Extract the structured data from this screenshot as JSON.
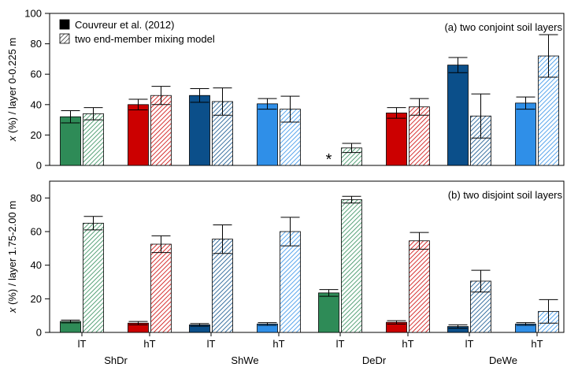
{
  "chart_data": {
    "type": "bar",
    "legend": {
      "placement": "top-left",
      "entries": [
        {
          "label": "Couvreur et al. (2012)",
          "style": "solid"
        },
        {
          "label": "two end-member mixing model",
          "style": "hatched"
        }
      ]
    },
    "groups": [
      "ShDr",
      "ShWe",
      "DeDr",
      "DeWe"
    ],
    "subgroups": [
      "lT",
      "hT"
    ],
    "colors": {
      "ShDr": {
        "lT": "#2e8b57",
        "hT": "#cc0000"
      },
      "ShWe": {
        "lT": "#0b4f8a",
        "hT": "#2f8fe8"
      },
      "DeDr": {
        "lT": "#2e8b57",
        "hT": "#cc0000"
      },
      "DeWe": {
        "lT": "#0b4f8a",
        "hT": "#2f8fe8"
      }
    },
    "panels": [
      {
        "id": "a",
        "label": "(a) two conjoint soil layers",
        "ylabel_prefix": "x",
        "ylabel_rest": " (%) / layer 0-0.225 m",
        "ylim": [
          0,
          100
        ],
        "yticks": [
          0,
          20,
          40,
          60,
          80,
          100
        ],
        "bars": [
          {
            "group": "ShDr",
            "sub": "lT",
            "couvreur": 32,
            "couvreur_err": 4,
            "mixing": 34,
            "mixing_err": 4
          },
          {
            "group": "ShDr",
            "sub": "hT",
            "couvreur": 40,
            "couvreur_err": 3.5,
            "mixing": 46,
            "mixing_err": 6
          },
          {
            "group": "ShWe",
            "sub": "lT",
            "couvreur": 46,
            "couvreur_err": 4.5,
            "mixing": 42,
            "mixing_err": 9
          },
          {
            "group": "ShWe",
            "sub": "hT",
            "couvreur": 40.5,
            "couvreur_err": 3.5,
            "mixing": 37,
            "mixing_err": 8.5
          },
          {
            "group": "DeDr",
            "sub": "lT",
            "couvreur": null,
            "couvreur_err": null,
            "mixing": 11.5,
            "mixing_err": 3
          },
          {
            "group": "DeDr",
            "sub": "hT",
            "couvreur": 34.5,
            "couvreur_err": 3.5,
            "mixing": 38.5,
            "mixing_err": 5.5
          },
          {
            "group": "DeWe",
            "sub": "lT",
            "couvreur": 66,
            "couvreur_err": 5,
            "mixing": 32.5,
            "mixing_err": 14.5
          },
          {
            "group": "DeWe",
            "sub": "hT",
            "couvreur": 41,
            "couvreur_err": 4,
            "mixing": 72,
            "mixing_err": 14
          }
        ],
        "annotations": [
          {
            "group": "DeDr",
            "sub": "lT",
            "text": "*"
          }
        ]
      },
      {
        "id": "b",
        "label": "(b) two disjoint soil layers",
        "ylabel_prefix": "x",
        "ylabel_rest": " (%) / layer 1.75-2.00 m",
        "ylim": [
          0,
          90
        ],
        "yticks": [
          0,
          20,
          40,
          60,
          80
        ],
        "bars": [
          {
            "group": "ShDr",
            "sub": "lT",
            "couvreur": 6.5,
            "couvreur_err": 0.8,
            "mixing": 65,
            "mixing_err": 4
          },
          {
            "group": "ShDr",
            "sub": "hT",
            "couvreur": 5.5,
            "couvreur_err": 1,
            "mixing": 52.5,
            "mixing_err": 5
          },
          {
            "group": "ShWe",
            "sub": "lT",
            "couvreur": 4.5,
            "couvreur_err": 0.8,
            "mixing": 55.5,
            "mixing_err": 8.5
          },
          {
            "group": "ShWe",
            "sub": "hT",
            "couvreur": 5,
            "couvreur_err": 0.8,
            "mixing": 60,
            "mixing_err": 8.5
          },
          {
            "group": "DeDr",
            "sub": "lT",
            "couvreur": 23.5,
            "couvreur_err": 2,
            "mixing": 79,
            "mixing_err": 2
          },
          {
            "group": "DeDr",
            "sub": "hT",
            "couvreur": 6,
            "couvreur_err": 1,
            "mixing": 54.5,
            "mixing_err": 5
          },
          {
            "group": "DeWe",
            "sub": "lT",
            "couvreur": 3.5,
            "couvreur_err": 1,
            "mixing": 30.5,
            "mixing_err": 6.5
          },
          {
            "group": "DeWe",
            "sub": "hT",
            "couvreur": 5,
            "couvreur_err": 0.8,
            "mixing": 12.5,
            "mixing_err": 7
          }
        ],
        "annotations": []
      }
    ]
  }
}
